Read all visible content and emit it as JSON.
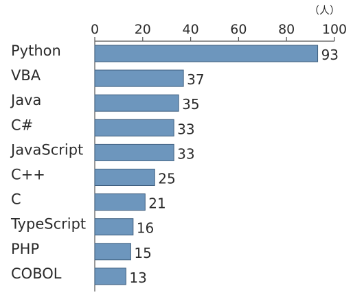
{
  "chart_data": {
    "type": "bar",
    "orientation": "horizontal",
    "categories": [
      "Python",
      "VBA",
      "Java",
      "C#",
      "JavaScript",
      "C++",
      "C",
      "TypeScript",
      "PHP",
      "COBOL"
    ],
    "values": [
      93,
      37,
      35,
      33,
      33,
      25,
      21,
      16,
      15,
      13
    ],
    "unit": "（人）",
    "xlim": [
      0,
      100
    ],
    "x_ticks": [
      0,
      20,
      40,
      60,
      80,
      100
    ],
    "x_axis_position": "top",
    "grid": false,
    "data_labels": true,
    "colors": {
      "bar_fill": "#6d96bd",
      "bar_stroke": "#3f5f7f",
      "axis": "#555555",
      "text": "#2b2b2b"
    }
  }
}
